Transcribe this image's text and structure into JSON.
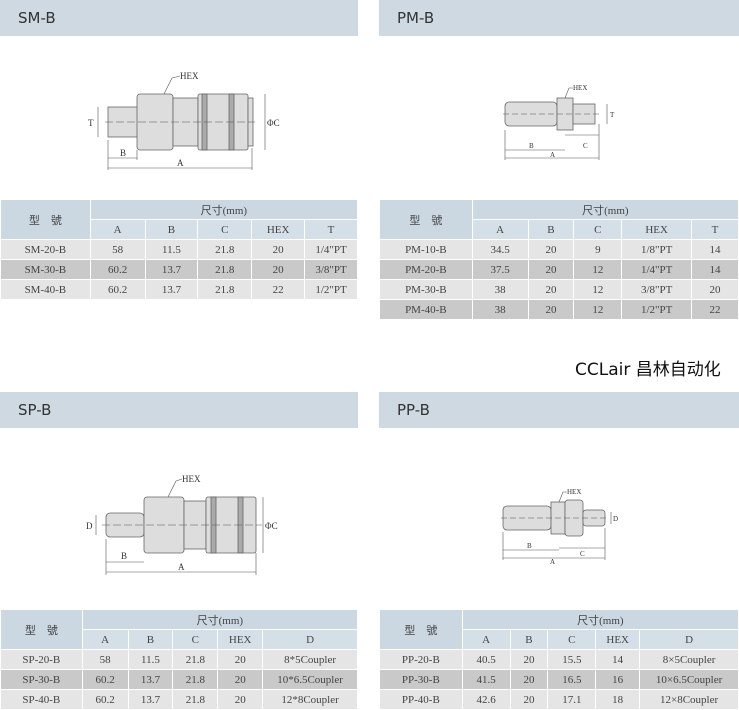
{
  "panels": [
    {
      "title": "SM-B",
      "header_model": "型　號",
      "header_size": "尺寸(mm)",
      "columns": [
        "A",
        "B",
        "C",
        "HEX",
        "T"
      ],
      "rows": [
        [
          "SM-20-B",
          "58",
          "11.5",
          "21.8",
          "20",
          "1/4\"PT"
        ],
        [
          "SM-30-B",
          "60.2",
          "13.7",
          "21.8",
          "20",
          "3/8\"PT"
        ],
        [
          "SM-40-B",
          "60.2",
          "13.7",
          "21.8",
          "22",
          "1/2\"PT"
        ]
      ],
      "drawing": {
        "hex": "HEX",
        "a": "A",
        "b": "B",
        "c": "ΦC",
        "t": "T"
      }
    },
    {
      "title": "PM-B",
      "header_model": "型　號",
      "header_size": "尺寸(mm)",
      "columns": [
        "A",
        "B",
        "C",
        "HEX",
        "T"
      ],
      "rows": [
        [
          "PM-10-B",
          "34.5",
          "20",
          "9",
          "1/8\"PT",
          "14"
        ],
        [
          "PM-20-B",
          "37.5",
          "20",
          "12",
          "1/4\"PT",
          "14"
        ],
        [
          "PM-30-B",
          "38",
          "20",
          "12",
          "3/8\"PT",
          "20"
        ],
        [
          "PM-40-B",
          "38",
          "20",
          "12",
          "1/2\"PT",
          "22"
        ]
      ],
      "drawing": {
        "hex": "HEX",
        "a": "A",
        "b": "B",
        "c": "C",
        "t": "T"
      }
    },
    {
      "title": "SP-B",
      "header_model": "型　號",
      "header_size": "尺寸(mm)",
      "columns": [
        "A",
        "B",
        "C",
        "HEX",
        "D"
      ],
      "rows": [
        [
          "SP-20-B",
          "58",
          "11.5",
          "21.8",
          "20",
          "8*5Coupler"
        ],
        [
          "SP-30-B",
          "60.2",
          "13.7",
          "21.8",
          "20",
          "10*6.5Coupler"
        ],
        [
          "SP-40-B",
          "60.2",
          "13.7",
          "21.8",
          "20",
          "12*8Coupler"
        ]
      ],
      "drawing": {
        "hex": "HEX",
        "a": "A",
        "b": "B",
        "c": "ΦC",
        "t": "D"
      }
    },
    {
      "title": "PP-B",
      "header_model": "型　號",
      "header_size": "尺寸(mm)",
      "columns": [
        "A",
        "B",
        "C",
        "HEX",
        "D"
      ],
      "rows": [
        [
          "PP-20-B",
          "40.5",
          "20",
          "15.5",
          "14",
          "8×5Coupler"
        ],
        [
          "PP-30-B",
          "41.5",
          "20",
          "16.5",
          "16",
          "10×6.5Coupler"
        ],
        [
          "PP-40-B",
          "42.6",
          "20",
          "17.1",
          "18",
          "12×8Coupler"
        ]
      ],
      "drawing": {
        "hex": "HEX",
        "a": "A",
        "b": "B",
        "c": "C",
        "t": "D"
      }
    }
  ],
  "watermark": "CCLair 昌林自动化"
}
